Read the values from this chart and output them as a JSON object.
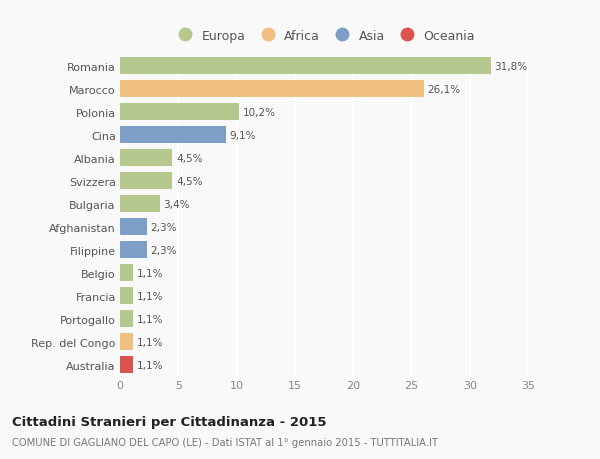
{
  "categories": [
    "Romania",
    "Marocco",
    "Polonia",
    "Cina",
    "Albania",
    "Svizzera",
    "Bulgaria",
    "Afghanistan",
    "Filippine",
    "Belgio",
    "Francia",
    "Portogallo",
    "Rep. del Congo",
    "Australia"
  ],
  "values": [
    31.8,
    26.1,
    10.2,
    9.1,
    4.5,
    4.5,
    3.4,
    2.3,
    2.3,
    1.1,
    1.1,
    1.1,
    1.1,
    1.1
  ],
  "labels": [
    "31,8%",
    "26,1%",
    "10,2%",
    "9,1%",
    "4,5%",
    "4,5%",
    "3,4%",
    "2,3%",
    "2,3%",
    "1,1%",
    "1,1%",
    "1,1%",
    "1,1%",
    "1,1%"
  ],
  "colors": [
    "#b5c98e",
    "#f0c080",
    "#b5c98e",
    "#7b9fc7",
    "#b5c98e",
    "#b5c98e",
    "#b5c98e",
    "#7b9fc7",
    "#7b9fc7",
    "#b5c98e",
    "#b5c98e",
    "#b5c98e",
    "#f0c080",
    "#d9534f"
  ],
  "legend_labels": [
    "Europa",
    "Africa",
    "Asia",
    "Oceania"
  ],
  "legend_colors": [
    "#b5c98e",
    "#f0c080",
    "#7b9fc7",
    "#d9534f"
  ],
  "title": "Cittadini Stranieri per Cittadinanza - 2015",
  "subtitle": "COMUNE DI GAGLIANO DEL CAPO (LE) - Dati ISTAT al 1° gennaio 2015 - TUTTITALIA.IT",
  "xlim": [
    0,
    35
  ],
  "xticks": [
    0,
    5,
    10,
    15,
    20,
    25,
    30,
    35
  ],
  "background_color": "#f9f9f9",
  "grid_color": "#ffffff",
  "bar_height": 0.72
}
